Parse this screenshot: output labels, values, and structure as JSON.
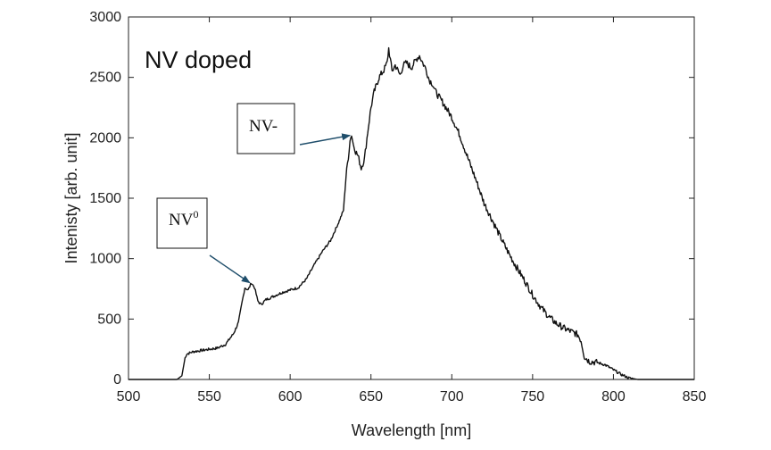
{
  "chart_data": {
    "type": "line",
    "title": "NV doped",
    "xlabel": "Wavelength [nm]",
    "ylabel": "Intenisty [arb. unit]",
    "xlim": [
      500,
      850
    ],
    "ylim": [
      0,
      3000
    ],
    "xticks": [
      "500",
      "550",
      "600",
      "650",
      "700",
      "750",
      "800",
      "850"
    ],
    "yticks": [
      "0",
      "500",
      "1000",
      "1500",
      "2000",
      "2500",
      "3000"
    ],
    "grid": false,
    "legend": "none",
    "line_color": "#111111",
    "annotations": [
      {
        "text": "NV",
        "superscript": "0",
        "arrow_to": {
          "x": 575,
          "y": 800
        }
      },
      {
        "text": "NV-",
        "superscript": "",
        "arrow_to": {
          "x": 637,
          "y": 2020
        }
      }
    ],
    "series": [
      {
        "x": [
          500,
          530,
          533,
          535,
          536,
          540,
          545,
          550,
          555,
          560,
          565,
          568,
          570,
          572,
          574,
          576,
          578,
          580,
          582,
          585,
          590,
          595,
          600,
          605,
          610,
          615,
          620,
          625,
          630,
          633,
          635,
          636,
          637,
          638,
          639,
          640,
          642,
          644,
          646,
          648,
          650,
          652,
          655,
          658,
          660,
          661,
          663,
          665,
          668,
          670,
          672,
          675,
          678,
          680,
          682,
          684,
          686,
          688,
          690,
          695,
          700,
          705,
          710,
          715,
          720,
          725,
          730,
          735,
          740,
          745,
          750,
          755,
          760,
          765,
          770,
          775,
          778,
          780,
          782,
          785,
          790,
          795,
          800,
          805,
          810,
          813,
          815,
          850
        ],
        "y": [
          0,
          0,
          30,
          180,
          210,
          230,
          240,
          250,
          260,
          290,
          380,
          470,
          620,
          760,
          740,
          800,
          760,
          650,
          620,
          660,
          690,
          720,
          740,
          760,
          830,
          950,
          1060,
          1150,
          1300,
          1400,
          1750,
          1820,
          1980,
          2020,
          1950,
          1900,
          1850,
          1750,
          1830,
          2050,
          2250,
          2380,
          2500,
          2560,
          2620,
          2740,
          2550,
          2600,
          2520,
          2600,
          2620,
          2580,
          2650,
          2680,
          2620,
          2570,
          2480,
          2450,
          2380,
          2280,
          2170,
          2020,
          1830,
          1650,
          1460,
          1320,
          1180,
          1050,
          930,
          820,
          700,
          600,
          520,
          460,
          420,
          390,
          370,
          320,
          190,
          150,
          140,
          120,
          80,
          40,
          10,
          5,
          0,
          0
        ]
      }
    ]
  }
}
